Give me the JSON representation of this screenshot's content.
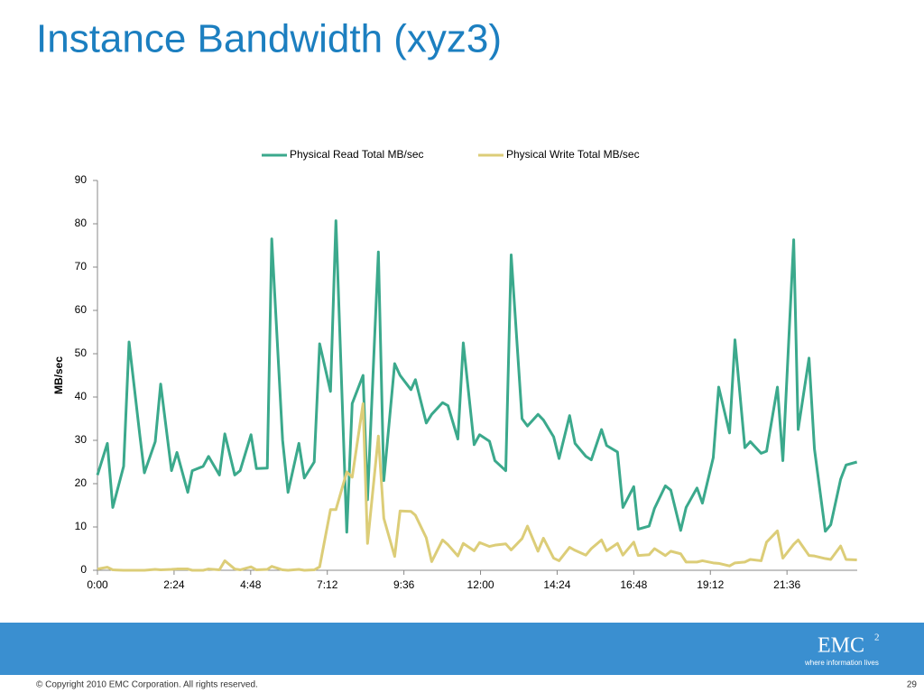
{
  "chart_data": {
    "type": "line",
    "title": "Instance Bandwidth (xyz3)",
    "y_label": "MB/sec",
    "x": [
      0,
      0.31,
      0.48,
      0.82,
      0.99,
      1.33,
      1.47,
      1.81,
      1.98,
      2.32,
      2.49,
      2.83,
      2.97,
      3.31,
      3.48,
      3.82,
      3.99,
      4.3,
      4.47,
      4.81,
      4.98,
      5.32,
      5.46,
      5.8,
      5.97,
      6.31,
      6.48,
      6.79,
      6.96,
      7.3,
      7.47,
      7.81,
      7.98,
      8.32,
      8.46,
      8.8,
      8.97,
      9.31,
      9.48,
      9.82,
      9.96,
      10.3,
      10.47,
      10.81,
      10.98,
      11.29,
      11.46,
      11.8,
      11.97,
      12.28,
      12.45,
      12.79,
      12.96,
      13.3,
      13.47,
      13.8,
      13.97,
      14.29,
      14.46,
      14.79,
      14.96,
      15.3,
      15.47,
      15.79,
      15.95,
      16.29,
      16.46,
      16.8,
      16.94,
      17.28,
      17.45,
      17.79,
      17.96,
      18.27,
      18.44,
      18.78,
      18.95,
      19.29,
      19.46,
      19.8,
      19.97,
      20.28,
      20.45,
      20.79,
      20.96,
      21.3,
      21.47,
      21.81,
      21.95,
      22.29,
      22.46,
      22.8,
      22.97,
      23.28,
      23.45,
      23.79
    ],
    "series": [
      {
        "name": "Physical Read Total MB/sec",
        "color": "#3ba98c",
        "values": [
          22,
          29.3,
          14.5,
          24,
          52.7,
          31,
          22.5,
          29.7,
          43,
          23,
          27.2,
          18,
          23,
          24,
          26.3,
          22,
          31.5,
          22,
          23,
          31.3,
          23.5,
          23.6,
          76.5,
          30,
          18,
          29.3,
          21.3,
          25,
          52.3,
          41.3,
          80.7,
          8.8,
          38.5,
          45,
          16.3,
          73.5,
          20.7,
          47.7,
          45,
          41.7,
          44,
          34,
          36,
          38.7,
          38,
          30.3,
          52.5,
          29,
          31.3,
          29.8,
          25.3,
          23,
          72.8,
          35,
          33.3,
          36,
          34.7,
          30.8,
          25.8,
          35.7,
          29.3,
          26.3,
          25.5,
          32.5,
          28.8,
          27.3,
          14.5,
          19.3,
          9.5,
          10.2,
          14.3,
          19.5,
          18.5,
          9.2,
          14.5,
          19,
          15.5,
          26,
          42.3,
          31.7,
          53.2,
          28.3,
          29.7,
          27,
          27.5,
          42.3,
          25.3,
          76.3,
          32.5,
          49,
          28,
          9,
          10.5,
          21,
          24.3,
          25
        ]
      },
      {
        "name": "Physical Write Total MB/sec",
        "color": "#dccd78",
        "values": [
          0.3,
          0.7,
          0.1,
          0,
          0,
          0,
          0,
          0.2,
          0.1,
          0.2,
          0.3,
          0.3,
          0,
          0,
          0.3,
          0.1,
          2.2,
          0.3,
          0.1,
          0.8,
          0.1,
          0.2,
          0.9,
          0.1,
          0,
          0.2,
          0,
          0.1,
          0.8,
          14,
          14,
          22.7,
          21.5,
          38.5,
          6.2,
          31,
          12,
          3.2,
          13.7,
          13.6,
          12.7,
          7.5,
          2,
          7,
          5.9,
          3.3,
          6.2,
          4.5,
          6.4,
          5.5,
          5.8,
          6.1,
          4.7,
          7.3,
          10.2,
          4.4,
          7.4,
          2.8,
          2.2,
          5.3,
          4.6,
          3.5,
          5,
          7,
          4.5,
          6.2,
          3.5,
          6.5,
          3.4,
          3.6,
          5,
          3.4,
          4.4,
          3.8,
          1.9,
          1.9,
          2.2,
          1.7,
          1.6,
          1,
          1.7,
          1.9,
          2.5,
          2.2,
          6.5,
          9.1,
          2.8,
          6,
          7,
          3.4,
          3.3,
          2.7,
          2.5,
          5.6,
          2.5,
          2.4
        ]
      }
    ],
    "xlim": [
      0,
      23.8
    ],
    "xticks": [
      {
        "value": 0,
        "label": "0:00"
      },
      {
        "value": 2.4,
        "label": "2:24"
      },
      {
        "value": 4.8,
        "label": "4:48"
      },
      {
        "value": 7.2,
        "label": "7:12"
      },
      {
        "value": 9.6,
        "label": "9:36"
      },
      {
        "value": 12,
        "label": "12:00"
      },
      {
        "value": 14.4,
        "label": "14:24"
      },
      {
        "value": 16.8,
        "label": "16:48"
      },
      {
        "value": 19.2,
        "label": "19:12"
      },
      {
        "value": 21.6,
        "label": "21:36"
      }
    ],
    "ylim": [
      0,
      90
    ],
    "yticks": [
      0,
      10,
      20,
      30,
      40,
      50,
      60,
      70,
      80,
      90
    ],
    "legend": "top",
    "grid": false
  },
  "footer": {
    "copyright": "© Copyright 2010  EMC Corporation.  All rights reserved.",
    "page": "29",
    "logo": "EMC",
    "logo_sup": "2",
    "tagline": "where information lives"
  }
}
